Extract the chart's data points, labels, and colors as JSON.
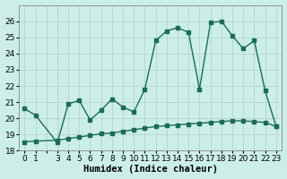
{
  "xlabel": "Humidex (Indice chaleur)",
  "background_color": "#cceee8",
  "grid_color": "#b8d8d0",
  "line_color": "#1a6b5a",
  "ylim": [
    18,
    27
  ],
  "xlim": [
    -0.5,
    23.5
  ],
  "yticks": [
    18,
    19,
    20,
    21,
    22,
    23,
    24,
    25,
    26
  ],
  "xtick_labels": [
    "0",
    "1",
    "",
    "3",
    "4",
    "5",
    "6",
    "7",
    "8",
    "9",
    "10",
    "11",
    "12",
    "13",
    "14",
    "15",
    "16",
    "17",
    "18",
    "19",
    "20",
    "21",
    "22",
    "23"
  ],
  "upper_x": [
    0,
    1,
    3,
    4,
    5,
    6,
    7,
    8,
    9,
    10,
    11,
    12,
    13,
    14,
    15,
    16,
    17,
    18,
    19,
    20,
    21,
    22,
    23
  ],
  "upper_y": [
    20.6,
    20.2,
    18.5,
    20.9,
    21.1,
    19.9,
    20.5,
    21.2,
    20.7,
    20.4,
    21.8,
    24.8,
    25.4,
    25.6,
    25.3,
    21.8,
    25.9,
    26.0,
    25.1,
    24.3,
    24.8,
    21.7,
    19.5
  ],
  "lower_x": [
    0,
    1,
    3,
    4,
    5,
    6,
    7,
    8,
    9,
    10,
    11,
    12,
    13,
    14,
    15,
    16,
    17,
    18,
    19,
    20,
    21,
    22,
    23
  ],
  "lower_y": [
    18.55,
    18.6,
    18.65,
    18.75,
    18.85,
    18.95,
    19.05,
    19.1,
    19.2,
    19.3,
    19.4,
    19.5,
    19.55,
    19.6,
    19.65,
    19.7,
    19.75,
    19.8,
    19.85,
    19.85,
    19.8,
    19.75,
    19.5
  ],
  "marker_size": 2.5,
  "line_width": 1.0,
  "font_size": 7.5
}
